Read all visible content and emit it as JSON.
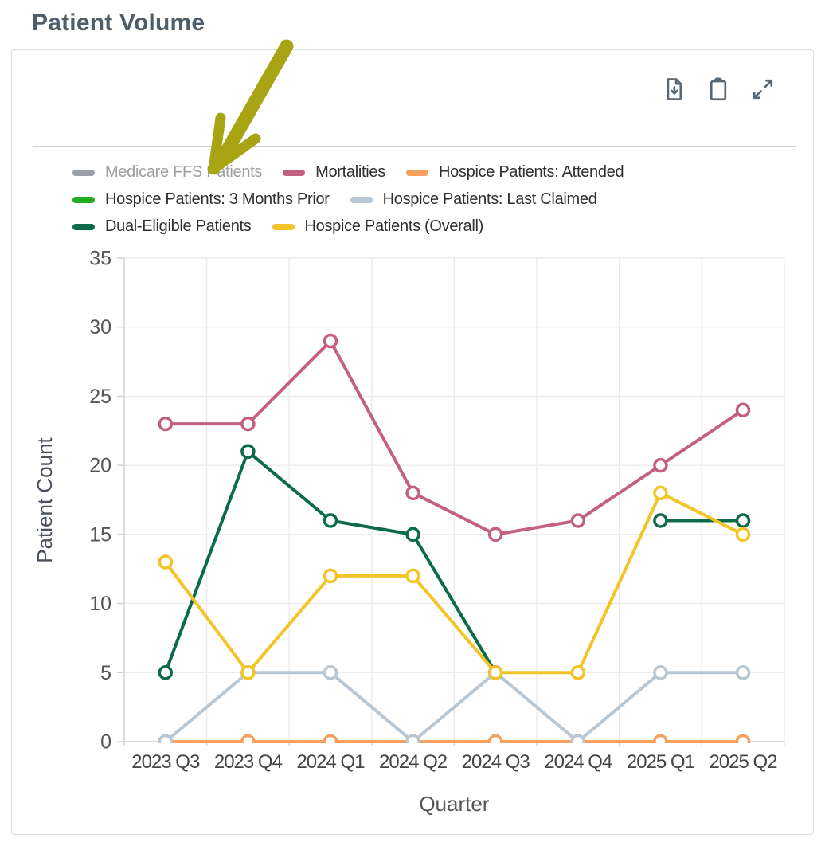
{
  "page": {
    "title": "Patient Volume"
  },
  "toolbar": {
    "icons": [
      {
        "name": "download-file-icon"
      },
      {
        "name": "clipboard-icon"
      },
      {
        "name": "expand-icon"
      }
    ],
    "icon_color": "#5a6873"
  },
  "annotation": {
    "type": "arrow",
    "color": "#a8a414",
    "points_to": "Medicare FFS Patients legend item"
  },
  "chart_data": {
    "type": "line",
    "title": "Patient Volume",
    "xlabel": "Quarter",
    "ylabel": "Patient Count",
    "ylim": [
      0,
      35
    ],
    "ytick_step": 5,
    "grid": true,
    "legend_position": "top",
    "categories": [
      "2023 Q3",
      "2023 Q4",
      "2024 Q1",
      "2024 Q2",
      "2024 Q3",
      "2024 Q4",
      "2025 Q1",
      "2025 Q2"
    ],
    "series": [
      {
        "name": "Medicare FFS Patients",
        "color": "#9aa0a6",
        "disabled": true,
        "z": 0,
        "values": null
      },
      {
        "name": "Mortalities",
        "color": "#c4607f",
        "disabled": false,
        "z": 6,
        "values": [
          23,
          23,
          29,
          18,
          15,
          16,
          20,
          24
        ]
      },
      {
        "name": "Hospice Patients: Attended",
        "color": "#f9a05c",
        "disabled": false,
        "z": 2,
        "values": [
          0,
          0,
          0,
          0,
          0,
          0,
          0,
          0
        ]
      },
      {
        "name": "Hospice Patients: 3 Months Prior",
        "color": "#23ad23",
        "disabled": false,
        "z": 1,
        "values": [
          0,
          0,
          0,
          0,
          0,
          0,
          0,
          0
        ]
      },
      {
        "name": "Hospice Patients: Last Claimed",
        "color": "#b9c7d2",
        "disabled": false,
        "z": 3,
        "values": [
          0,
          5,
          5,
          0,
          5,
          0,
          5,
          5
        ]
      },
      {
        "name": "Dual-Eligible Patients",
        "color": "#0c6b4b",
        "disabled": false,
        "z": 4,
        "values": [
          5,
          21,
          16,
          15,
          5,
          null,
          16,
          16
        ]
      },
      {
        "name": "Hospice Patients (Overall)",
        "color": "#f4c327",
        "disabled": false,
        "z": 5,
        "values": [
          13,
          5,
          12,
          12,
          5,
          5,
          18,
          15
        ]
      }
    ],
    "style": {
      "grid_color": "#ebebeb",
      "axis_color": "#cfd4d9",
      "tick_label_color": "#555555",
      "axis_title_color": "#49505b",
      "line_width": 4,
      "marker_radius": 7.5,
      "marker_fill": "#ffffff"
    }
  }
}
